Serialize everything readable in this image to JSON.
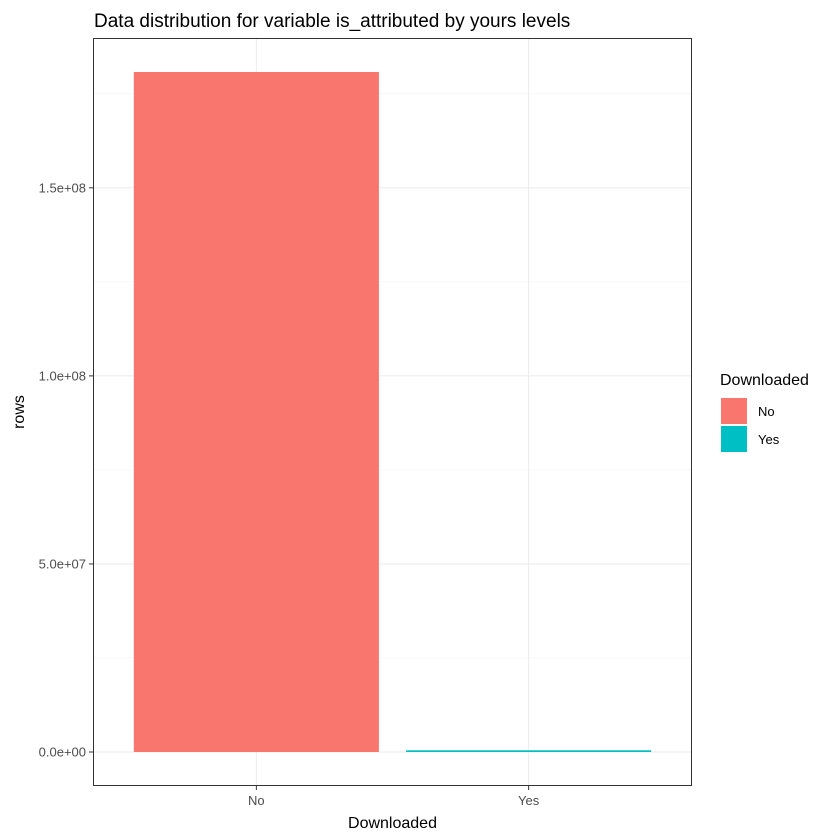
{
  "chart_data": {
    "type": "bar",
    "title": "Data distribution for variable is_attributed by yours levels",
    "xlabel": "Downloaded",
    "ylabel": "rows",
    "categories": [
      "No",
      "Yes"
    ],
    "values": [
      180800000,
      450000
    ],
    "colors": [
      "#F8766D",
      "#00BFC4"
    ],
    "ylim": [
      -9040000,
      189840000
    ],
    "y_ticks": [
      {
        "value": 0,
        "label": "0.0e+00"
      },
      {
        "value": 50000000,
        "label": "5.0e+07"
      },
      {
        "value": 100000000,
        "label": "1.0e+08"
      },
      {
        "value": 150000000,
        "label": "1.5e+08"
      }
    ],
    "y_minor_ticks": [
      25000000,
      75000000,
      125000000,
      175000000
    ],
    "grid": true,
    "legend": {
      "title": "Downloaded",
      "position": "right",
      "items": [
        {
          "label": "No",
          "color": "#F8766D"
        },
        {
          "label": "Yes",
          "color": "#00BFC4"
        }
      ]
    }
  }
}
